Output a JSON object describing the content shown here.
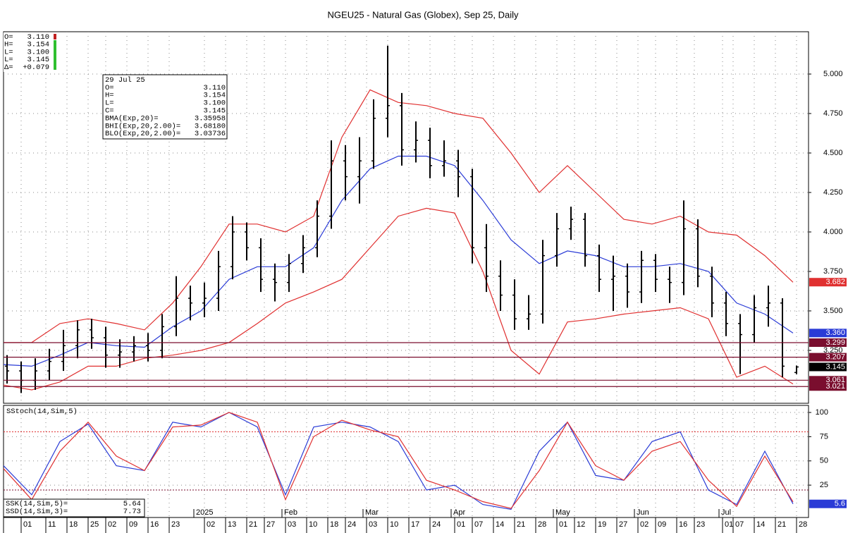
{
  "chart_data": [
    {
      "type": "ohlc",
      "title": "NGEU25 - Natural Gas (Globex), Sep 25, Daily",
      "xlim": [
        0,
        228.4
      ],
      "ylim": [
        2.915,
        5.268
      ],
      "grid": true,
      "yticks": [
        {
          "value": 5,
          "label": "5.000"
        },
        {
          "value": 4.75,
          "label": "4.750"
        },
        {
          "value": 4.5,
          "label": "4.500"
        },
        {
          "value": 4.25,
          "label": "4.250"
        },
        {
          "value": 4,
          "label": "4.000"
        },
        {
          "value": 3.75,
          "label": "3.750"
        },
        {
          "value": 3.5,
          "label": "3.500"
        },
        {
          "value": 3.25,
          "label": "3.250"
        }
      ],
      "xticks": [
        {
          "value": 5,
          "label": "01"
        },
        {
          "value": 12,
          "label": "11"
        },
        {
          "value": 18,
          "label": "18"
        },
        {
          "value": 24,
          "label": "25"
        },
        {
          "value": 29,
          "label": "02"
        },
        {
          "value": 35,
          "label": "09"
        },
        {
          "value": 41,
          "label": "16"
        },
        {
          "value": 47,
          "label": "23"
        },
        {
          "value": 57,
          "label": "02"
        },
        {
          "value": 63,
          "label": "13"
        },
        {
          "value": 69,
          "label": "21"
        },
        {
          "value": 74,
          "label": "27"
        },
        {
          "value": 80,
          "label": "03"
        },
        {
          "value": 86,
          "label": "10"
        },
        {
          "value": 92,
          "label": "18"
        },
        {
          "value": 97,
          "label": "24"
        },
        {
          "value": 103,
          "label": "03"
        },
        {
          "value": 109,
          "label": "10"
        },
        {
          "value": 115,
          "label": "17"
        },
        {
          "value": 121,
          "label": "24"
        },
        {
          "value": 128,
          "label": "01"
        },
        {
          "value": 133,
          "label": "07"
        },
        {
          "value": 139,
          "label": "14"
        },
        {
          "value": 145,
          "label": "21"
        },
        {
          "value": 151,
          "label": "28"
        },
        {
          "value": 157,
          "label": "01"
        },
        {
          "value": 162,
          "label": "12"
        },
        {
          "value": 168,
          "label": "19"
        },
        {
          "value": 174,
          "label": "27"
        },
        {
          "value": 180,
          "label": "02"
        },
        {
          "value": 185,
          "label": "09"
        },
        {
          "value": 191,
          "label": "16"
        },
        {
          "value": 196,
          "label": "23"
        },
        {
          "value": 204,
          "label": "01"
        },
        {
          "value": 207,
          "label": "07"
        },
        {
          "value": 213,
          "label": "14"
        },
        {
          "value": 219,
          "label": "21"
        },
        {
          "value": 225,
          "label": "28"
        }
      ],
      "xticks_major": [
        {
          "value": 54,
          "label": "2025"
        },
        {
          "value": 79,
          "label": "Feb"
        },
        {
          "value": 102,
          "label": "Mar"
        },
        {
          "value": 127,
          "label": "Apr"
        },
        {
          "value": 156,
          "label": "May"
        },
        {
          "value": 179,
          "label": "Jun"
        },
        {
          "value": 203,
          "label": "Jul"
        }
      ],
      "bars": {
        "color": "#000000",
        "x": [
          1,
          5,
          9,
          13,
          17,
          21,
          25,
          29,
          33,
          37,
          41,
          45,
          49,
          53,
          57,
          61,
          65,
          69,
          73,
          77,
          81,
          85,
          89,
          93,
          97,
          101,
          105,
          109,
          113,
          117,
          121,
          125,
          129,
          133,
          137,
          141,
          145,
          149,
          153,
          157,
          161,
          165,
          169,
          173,
          177,
          181,
          185,
          189,
          193,
          197,
          201,
          205,
          209,
          213,
          217,
          221,
          225
        ],
        "open": [
          3.15,
          3.12,
          3.06,
          3.12,
          3.18,
          3.28,
          3.38,
          3.33,
          3.22,
          3.24,
          3.28,
          3.25,
          3.4,
          3.58,
          3.55,
          3.58,
          3.78,
          4.0,
          3.9,
          3.7,
          3.68,
          3.8,
          3.9,
          4.1,
          4.45,
          4.35,
          4.45,
          4.72,
          4.8,
          4.52,
          4.58,
          4.42,
          4.45,
          4.35,
          3.9,
          3.72,
          3.6,
          3.45,
          3.48,
          3.85,
          4.02,
          4.08,
          3.85,
          3.7,
          3.72,
          3.62,
          3.82,
          3.7,
          3.68,
          4.02,
          3.72,
          3.55,
          3.42,
          3.35,
          3.52,
          3.55,
          3.11
        ],
        "high": [
          3.22,
          3.18,
          3.2,
          3.26,
          3.38,
          3.44,
          3.45,
          3.4,
          3.32,
          3.34,
          3.36,
          3.48,
          3.72,
          3.66,
          3.68,
          3.88,
          4.1,
          4.06,
          3.96,
          3.8,
          3.86,
          3.98,
          4.2,
          4.58,
          4.55,
          4.6,
          4.84,
          5.18,
          4.88,
          4.7,
          4.66,
          4.58,
          4.52,
          4.4,
          4.05,
          3.82,
          3.7,
          3.6,
          3.95,
          4.12,
          4.16,
          4.12,
          3.92,
          3.85,
          3.8,
          3.88,
          3.86,
          3.78,
          4.2,
          4.08,
          3.78,
          3.62,
          3.48,
          3.6,
          3.66,
          3.58,
          3.154
        ],
        "low": [
          3.04,
          2.98,
          3.0,
          3.06,
          3.12,
          3.2,
          3.26,
          3.14,
          3.14,
          3.18,
          3.18,
          3.2,
          3.34,
          3.44,
          3.46,
          3.5,
          3.7,
          3.82,
          3.62,
          3.56,
          3.62,
          3.74,
          3.84,
          4.02,
          4.2,
          4.18,
          4.4,
          4.6,
          4.42,
          4.44,
          4.34,
          4.35,
          4.22,
          3.8,
          3.62,
          3.5,
          3.38,
          3.38,
          3.42,
          3.78,
          3.95,
          3.78,
          3.62,
          3.5,
          3.52,
          3.55,
          3.62,
          3.55,
          3.6,
          3.65,
          3.46,
          3.34,
          3.1,
          3.3,
          3.4,
          3.08,
          3.1
        ],
        "close": [
          3.12,
          3.06,
          3.12,
          3.18,
          3.28,
          3.38,
          3.33,
          3.22,
          3.24,
          3.28,
          3.25,
          3.4,
          3.58,
          3.55,
          3.58,
          3.78,
          4.0,
          3.9,
          3.7,
          3.68,
          3.8,
          3.9,
          4.1,
          4.45,
          4.35,
          4.45,
          4.72,
          4.8,
          4.52,
          4.58,
          4.42,
          4.45,
          4.35,
          3.9,
          3.72,
          3.6,
          3.45,
          3.48,
          3.85,
          4.02,
          4.08,
          3.85,
          3.7,
          3.72,
          3.62,
          3.82,
          3.7,
          3.68,
          4.02,
          3.72,
          3.55,
          3.42,
          3.35,
          3.52,
          3.55,
          3.15,
          3.145
        ]
      },
      "series": [
        {
          "color": "#2a3bd6",
          "x": [
            0,
            8,
            16,
            24,
            32,
            40,
            48,
            56,
            64,
            72,
            80,
            88,
            96,
            104,
            112,
            120,
            128,
            136,
            144,
            152,
            160,
            168,
            176,
            184,
            192,
            200,
            208,
            216,
            224
          ],
          "values": [
            3.16,
            3.15,
            3.22,
            3.3,
            3.28,
            3.27,
            3.4,
            3.5,
            3.7,
            3.78,
            3.78,
            3.9,
            4.2,
            4.4,
            4.48,
            4.48,
            4.42,
            4.2,
            3.95,
            3.8,
            3.88,
            3.85,
            3.78,
            3.78,
            3.8,
            3.75,
            3.55,
            3.48,
            3.35958
          ]
        },
        {
          "color": "#e03030",
          "x": [
            0,
            8,
            16,
            24,
            32,
            40,
            48,
            56,
            64,
            72,
            80,
            88,
            96,
            104,
            112,
            120,
            128,
            136,
            144,
            152,
            160,
            168,
            176,
            184,
            192,
            200,
            208,
            216,
            224
          ],
          "values": [
            3.3,
            3.3,
            3.42,
            3.45,
            3.42,
            3.38,
            3.55,
            3.78,
            4.05,
            4.05,
            4.0,
            4.1,
            4.6,
            4.9,
            4.82,
            4.8,
            4.75,
            4.72,
            4.5,
            4.25,
            4.42,
            4.25,
            4.08,
            4.05,
            4.1,
            4.0,
            3.98,
            3.85,
            3.6818
          ]
        },
        {
          "color": "#e03030",
          "x": [
            0,
            8,
            16,
            24,
            32,
            40,
            48,
            56,
            64,
            72,
            80,
            88,
            96,
            104,
            112,
            120,
            128,
            136,
            144,
            152,
            160,
            168,
            176,
            184,
            192,
            200,
            208,
            216,
            224
          ],
          "values": [
            3.03,
            3.0,
            3.05,
            3.15,
            3.15,
            3.2,
            3.22,
            3.25,
            3.3,
            3.42,
            3.55,
            3.62,
            3.7,
            3.9,
            4.1,
            4.15,
            4.12,
            3.75,
            3.25,
            3.1,
            3.43,
            3.45,
            3.48,
            3.5,
            3.52,
            3.45,
            3.08,
            3.15,
            3.03736
          ]
        }
      ],
      "tags": [
        {
          "value": 3.682,
          "label": "3.682",
          "color": "#e03030",
          "line": false
        },
        {
          "value": 3.36,
          "label": "3.360",
          "color": "#2a3bd6",
          "line": false
        },
        {
          "value": 3.299,
          "label": "3.299",
          "color": "#7a0e2e",
          "line": true
        },
        {
          "value": 3.207,
          "label": "3.207",
          "color": "#7a0e2e",
          "line": true
        },
        {
          "value": 3.145,
          "label": "3.145",
          "color": "#000000",
          "line": false
        },
        {
          "value": 3.061,
          "label": "3.061",
          "color": "#7a0e2e",
          "line": true
        },
        {
          "value": 3.021,
          "label": "3.021",
          "color": "#7a0e2e",
          "line": true
        }
      ]
    },
    {
      "type": "line",
      "title": "SStoch(14,Sim,5)",
      "xlim": [
        0,
        228.4
      ],
      "ylim": [
        -8.4,
        107.3
      ],
      "yticks": [
        100,
        75,
        50,
        25
      ],
      "grid": true,
      "hlines": [
        {
          "value": 80,
          "color": "#e03030"
        },
        {
          "value": 20,
          "color": "#7a0e2e"
        }
      ],
      "series": [
        {
          "color": "#2a3bd6",
          "x": [
            0,
            8,
            16,
            24,
            32,
            40,
            48,
            56,
            64,
            72,
            80,
            88,
            96,
            104,
            112,
            120,
            128,
            136,
            144,
            152,
            160,
            168,
            176,
            184,
            192,
            200,
            208,
            216,
            224
          ],
          "values": [
            45,
            15,
            70,
            88,
            45,
            40,
            90,
            85,
            100,
            85,
            15,
            85,
            90,
            85,
            70,
            20,
            25,
            5,
            0,
            60,
            90,
            35,
            30,
            70,
            80,
            20,
            5,
            60,
            5.64
          ]
        },
        {
          "color": "#e03030",
          "x": [
            0,
            8,
            16,
            24,
            32,
            40,
            48,
            56,
            64,
            72,
            80,
            88,
            96,
            104,
            112,
            120,
            128,
            136,
            144,
            152,
            160,
            168,
            176,
            184,
            192,
            200,
            208,
            216,
            224
          ],
          "values": [
            42,
            10,
            60,
            90,
            55,
            40,
            85,
            87,
            100,
            90,
            10,
            75,
            92,
            82,
            75,
            30,
            20,
            8,
            1,
            40,
            90,
            45,
            30,
            60,
            70,
            30,
            3,
            55,
            7.73
          ]
        }
      ],
      "tags": [
        {
          "value": 5.64,
          "label": "5.6",
          "color": "#2a3bd6",
          "line": false
        }
      ]
    }
  ],
  "quote_box": {
    "rows": [
      [
        "O=",
        "3.110"
      ],
      [
        "H=",
        "3.154"
      ],
      [
        "L=",
        "3.100"
      ],
      [
        "L=",
        "3.145"
      ],
      [
        "Δ=",
        "+0.079"
      ]
    ]
  },
  "data_window": {
    "date": "29 Jul 25",
    "rows": [
      [
        "O=",
        "3.110"
      ],
      [
        "H=",
        "3.154"
      ],
      [
        "L=",
        "3.100"
      ],
      [
        "C=",
        "3.145"
      ],
      [
        "BMA(Exp,20)=",
        "3.35958"
      ],
      [
        "BHI(Exp,20,2.00)=",
        "3.68180"
      ],
      [
        "BLO(Exp,20,2.00)=",
        "3.03736"
      ]
    ]
  },
  "stoch_readout": {
    "rows": [
      [
        "SSK(14,Sim,5)=",
        "5.64"
      ],
      [
        "SSD(14,Sim,3)=",
        "7.73"
      ]
    ]
  }
}
